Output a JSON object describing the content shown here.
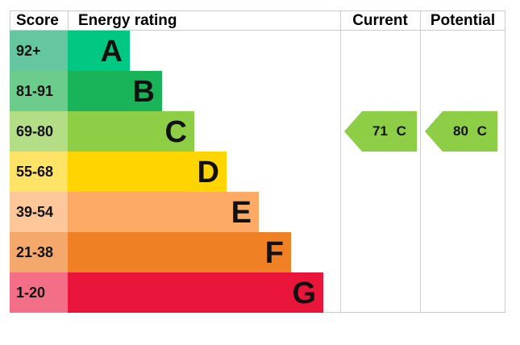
{
  "headers": {
    "score": "Score",
    "energy_rating": "Energy rating",
    "current": "Current",
    "potential": "Potential"
  },
  "bands": [
    {
      "range": "92+",
      "letter": "A",
      "color": "#00c781",
      "score_color": "#64c7a0"
    },
    {
      "range": "81-91",
      "letter": "B",
      "color": "#19b459",
      "score_color": "#6ccc8c"
    },
    {
      "range": "69-80",
      "letter": "C",
      "color": "#8dce46",
      "score_color": "#b3de85"
    },
    {
      "range": "55-68",
      "letter": "D",
      "color": "#ffd500",
      "score_color": "#ffe366"
    },
    {
      "range": "39-54",
      "letter": "E",
      "color": "#fcaa65",
      "score_color": "#fdc79a"
    },
    {
      "range": "21-38",
      "letter": "F",
      "color": "#ef8023",
      "score_color": "#f4a86b"
    },
    {
      "range": "1-20",
      "letter": "G",
      "color": "#e9153b",
      "score_color": "#f26f87"
    }
  ],
  "current": {
    "label": "71 C",
    "value": 71,
    "band": "C",
    "color": "#8dce46"
  },
  "potential": {
    "label": "80 C",
    "value": 80,
    "band": "C",
    "color": "#8dce46"
  }
}
